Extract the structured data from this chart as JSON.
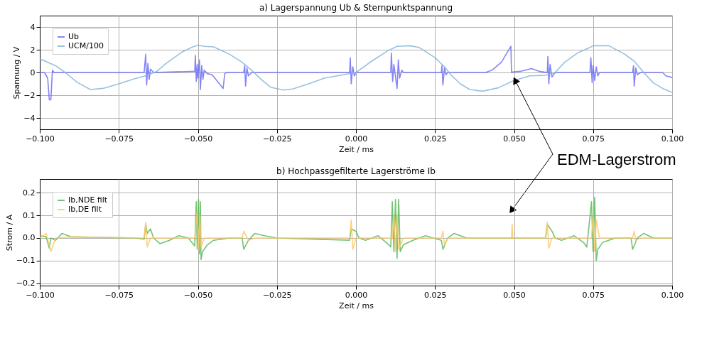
{
  "chart_data": [
    {
      "type": "line",
      "title": "a) Lagerspannung Ub & Sternpunktspannung",
      "xlabel": "Zeit / ms",
      "ylabel": "Spannung / V",
      "xlim": [
        -0.1,
        0.1
      ],
      "xticks": [
        {
          "value": -0.1,
          "label": "−0.100"
        },
        {
          "value": -0.075,
          "label": "−0.075"
        },
        {
          "value": -0.05,
          "label": "−0.050"
        },
        {
          "value": -0.025,
          "label": "−0.025"
        },
        {
          "value": 0,
          "label": "0.000"
        },
        {
          "value": 0.025,
          "label": "0.025"
        },
        {
          "value": 0.05,
          "label": "0.050"
        },
        {
          "value": 0.075,
          "label": "0.075"
        },
        {
          "value": 0.1,
          "label": "0.100"
        }
      ],
      "ylim": [
        -5,
        5
      ],
      "yticks": [
        -4,
        -2,
        0,
        2,
        4
      ],
      "grid": true,
      "legend": "top left",
      "marker": "none",
      "line_style": "solid",
      "annotations": [
        {
          "text": "EDM-Lagerstrom",
          "x": 0.05,
          "y": -0.5
        }
      ],
      "series": [
        {
          "name": "Ub",
          "color": "#7070f8",
          "x": [
            -0.1,
            -0.0985,
            -0.0975,
            -0.097,
            -0.0965,
            -0.096,
            -0.0955,
            -0.067,
            -0.0665,
            -0.0662,
            -0.0658,
            -0.0654,
            -0.065,
            -0.064,
            -0.051,
            -0.0508,
            -0.0505,
            -0.0502,
            -0.05,
            -0.0495,
            -0.0492,
            -0.0488,
            -0.0484,
            -0.048,
            -0.047,
            -0.0455,
            -0.042,
            -0.0415,
            -0.041,
            -0.0355,
            -0.0352,
            -0.0349,
            -0.0345,
            -0.034,
            -0.033,
            -0.002,
            -0.0018,
            -0.0015,
            -0.001,
            -0.0005,
            0,
            0.011,
            0.0112,
            0.0116,
            0.012,
            0.013,
            0.0134,
            0.0138,
            0.0145,
            0.015,
            0.027,
            0.0272,
            0.0275,
            0.028,
            0.0285,
            0.029,
            0.041,
            0.043,
            0.046,
            0.049,
            0.0492,
            0.0495,
            0.052,
            0.0555,
            0.058,
            0.0605,
            0.0607,
            0.061,
            0.0614,
            0.062,
            0.063,
            0.074,
            0.0743,
            0.0747,
            0.075,
            0.0755,
            0.076,
            0.0765,
            0.077,
            0.0875,
            0.0878,
            0.088,
            0.0885,
            0.089,
            0.09,
            0.097,
            0.098,
            0.1
          ],
          "values": [
            0,
            0,
            -0.5,
            -2.4,
            -2.4,
            0.2,
            0,
            0,
            1.6,
            -1.1,
            0.8,
            -0.6,
            0.3,
            0,
            0.1,
            1.5,
            -0.8,
            0.7,
            -0.5,
            1.1,
            -1.5,
            0.6,
            -0.6,
            0.2,
            -0.1,
            -0.2,
            -1.4,
            -0.1,
            0,
            0,
            0.6,
            -1.2,
            0.4,
            -0.3,
            0,
            0,
            1.3,
            -1.0,
            0.5,
            -0.3,
            0,
            0,
            1.7,
            -0.8,
            0.7,
            -1.4,
            1.1,
            -0.5,
            0.2,
            0,
            0,
            0.6,
            -1.1,
            0.4,
            -0.2,
            0,
            0,
            0.2,
            0.9,
            2.3,
            0,
            0.05,
            0.1,
            0.35,
            0.1,
            0,
            1.4,
            -1.0,
            0.7,
            -0.4,
            0,
            0,
            1.3,
            -0.9,
            0.6,
            -0.7,
            0.5,
            -0.3,
            0,
            0,
            0.6,
            -1.2,
            0.4,
            -0.2,
            0,
            0,
            -0.3,
            -0.45
          ]
        },
        {
          "name": "UCM/100",
          "color": "#86b6d8",
          "x": [
            -0.1,
            -0.095,
            -0.092,
            -0.088,
            -0.084,
            -0.08,
            -0.075,
            -0.07,
            -0.066,
            -0.063,
            -0.06,
            -0.055,
            -0.052,
            -0.05,
            -0.048,
            -0.045,
            -0.04,
            -0.036,
            -0.033,
            -0.03,
            -0.027,
            -0.023,
            -0.02,
            -0.015,
            -0.01,
            -0.005,
            0,
            0.005,
            0.01,
            0.013,
            0.017,
            0.02,
            0.025,
            0.028,
            0.03,
            0.033,
            0.036,
            0.04,
            0.045,
            0.05,
            0.055,
            0.06,
            0.063,
            0.066,
            0.07,
            0.074,
            0.075,
            0.08,
            0.085,
            0.088,
            0.091,
            0.094,
            0.097,
            0.1
          ],
          "values": [
            1.2,
            0.6,
            0,
            -0.9,
            -1.5,
            -1.4,
            -1.0,
            -0.55,
            -0.25,
            0.1,
            0.8,
            1.8,
            2.2,
            2.4,
            2.3,
            2.25,
            1.6,
            0.9,
            0.2,
            -0.6,
            -1.3,
            -1.55,
            -1.45,
            -1.0,
            -0.5,
            -0.25,
            0,
            1.0,
            1.9,
            2.3,
            2.35,
            2.2,
            1.3,
            0.5,
            -0.2,
            -1.0,
            -1.5,
            -1.65,
            -1.35,
            -0.7,
            -0.3,
            -0.25,
            0,
            0.9,
            1.7,
            2.2,
            2.35,
            2.35,
            1.6,
            1.0,
            0,
            -0.9,
            -1.4,
            -1.75
          ]
        }
      ]
    },
    {
      "type": "line",
      "title": "b) Hochpassgefilterte Lagerströme Ib",
      "xlabel": "Zeit / ms",
      "ylabel": "Strom / A",
      "xlim": [
        -0.1,
        0.1
      ],
      "xticks": [
        {
          "value": -0.1,
          "label": "−0.100"
        },
        {
          "value": -0.075,
          "label": "−0.075"
        },
        {
          "value": -0.05,
          "label": "−0.050"
        },
        {
          "value": -0.025,
          "label": "−0.025"
        },
        {
          "value": 0,
          "label": "0.000"
        },
        {
          "value": 0.025,
          "label": "0.025"
        },
        {
          "value": 0.05,
          "label": "0.050"
        },
        {
          "value": 0.075,
          "label": "0.075"
        },
        {
          "value": 0.1,
          "label": "0.100"
        }
      ],
      "ylim": [
        -0.21,
        0.26
      ],
      "yticks": [
        -0.2,
        -0.1,
        {
          "value": 0,
          "label": "0.0"
        },
        0.1,
        0.2
      ],
      "grid": true,
      "legend": "top left",
      "marker": "none",
      "line_style": "solid",
      "series": [
        {
          "name": "Ib,NDE filt",
          "color": "#5cb85c",
          "x": [
            -0.1,
            -0.098,
            -0.097,
            -0.0965,
            -0.095,
            -0.093,
            -0.09,
            -0.07,
            -0.067,
            -0.0665,
            -0.066,
            -0.065,
            -0.064,
            -0.062,
            -0.059,
            -0.056,
            -0.053,
            -0.051,
            -0.0505,
            -0.0502,
            -0.0498,
            -0.0495,
            -0.0492,
            -0.049,
            -0.0485,
            -0.047,
            -0.045,
            -0.04,
            -0.036,
            -0.0355,
            -0.034,
            -0.032,
            -0.029,
            -0.025,
            -0.002,
            -0.0015,
            0,
            0.001,
            0.003,
            0.007,
            0.01,
            0.011,
            0.0115,
            0.012,
            0.0125,
            0.013,
            0.0135,
            0.014,
            0.015,
            0.018,
            0.022,
            0.027,
            0.0275,
            0.029,
            0.031,
            0.035,
            0.05,
            0.06,
            0.0605,
            0.062,
            0.063,
            0.065,
            0.069,
            0.072,
            0.073,
            0.0745,
            0.075,
            0.0755,
            0.076,
            0.0765,
            0.078,
            0.082,
            0.087,
            0.0875,
            0.089,
            0.091,
            0.094,
            0.1
          ],
          "values": [
            0.01,
            0.005,
            -0.045,
            0,
            -0.01,
            0.02,
            0.005,
            0,
            -0.005,
            0.06,
            0.02,
            0.04,
            0,
            -0.025,
            -0.01,
            0.01,
            0,
            -0.035,
            0.16,
            -0.05,
            0.17,
            -0.07,
            0.16,
            -0.095,
            -0.06,
            -0.03,
            -0.01,
            0,
            0,
            -0.05,
            -0.01,
            0.02,
            0.01,
            0,
            -0.01,
            0.04,
            0.03,
            0,
            -0.01,
            0.01,
            -0.025,
            -0.04,
            0.16,
            -0.06,
            0.17,
            -0.09,
            0.17,
            -0.06,
            -0.03,
            -0.01,
            0.01,
            -0.01,
            -0.05,
            0,
            0.02,
            0,
            0,
            0,
            0.06,
            0.03,
            0,
            -0.01,
            0.01,
            -0.02,
            -0.04,
            0.16,
            -0.06,
            0.18,
            -0.1,
            -0.05,
            -0.02,
            0,
            0,
            -0.05,
            0,
            0.02,
            0,
            0
          ]
        },
        {
          "name": "Ib,DE filt",
          "color": "#ffc864",
          "x": [
            -0.1,
            -0.098,
            -0.0965,
            -0.095,
            -0.09,
            -0.067,
            -0.0665,
            -0.066,
            -0.065,
            -0.051,
            -0.0502,
            -0.0498,
            -0.0494,
            -0.049,
            -0.048,
            -0.036,
            -0.0355,
            -0.034,
            -0.032,
            -0.002,
            -0.0015,
            -0.001,
            0,
            0.0115,
            0.012,
            0.0125,
            0.013,
            0.0135,
            0.015,
            0.027,
            0.0275,
            0.028,
            0.029,
            0.0492,
            0.0494,
            0.0496,
            0.06,
            0.0605,
            0.061,
            0.062,
            0.0745,
            0.075,
            0.0755,
            0.076,
            0.077,
            0.0875,
            0.088,
            0.0885,
            0.09,
            0.1
          ],
          "values": [
            0,
            0.02,
            -0.06,
            0,
            0.005,
            0,
            0.07,
            -0.04,
            0,
            0,
            0.12,
            -0.05,
            0.1,
            -0.04,
            0,
            0,
            0.03,
            -0.01,
            0,
            0,
            0.08,
            -0.05,
            0,
            0,
            0.1,
            -0.06,
            0.1,
            -0.05,
            0,
            0,
            0.03,
            -0.03,
            0,
            0,
            0.06,
            0,
            0,
            0.07,
            -0.045,
            0,
            0,
            0.1,
            -0.06,
            0.08,
            0,
            0,
            0.03,
            -0.01,
            0,
            0
          ]
        }
      ]
    }
  ]
}
